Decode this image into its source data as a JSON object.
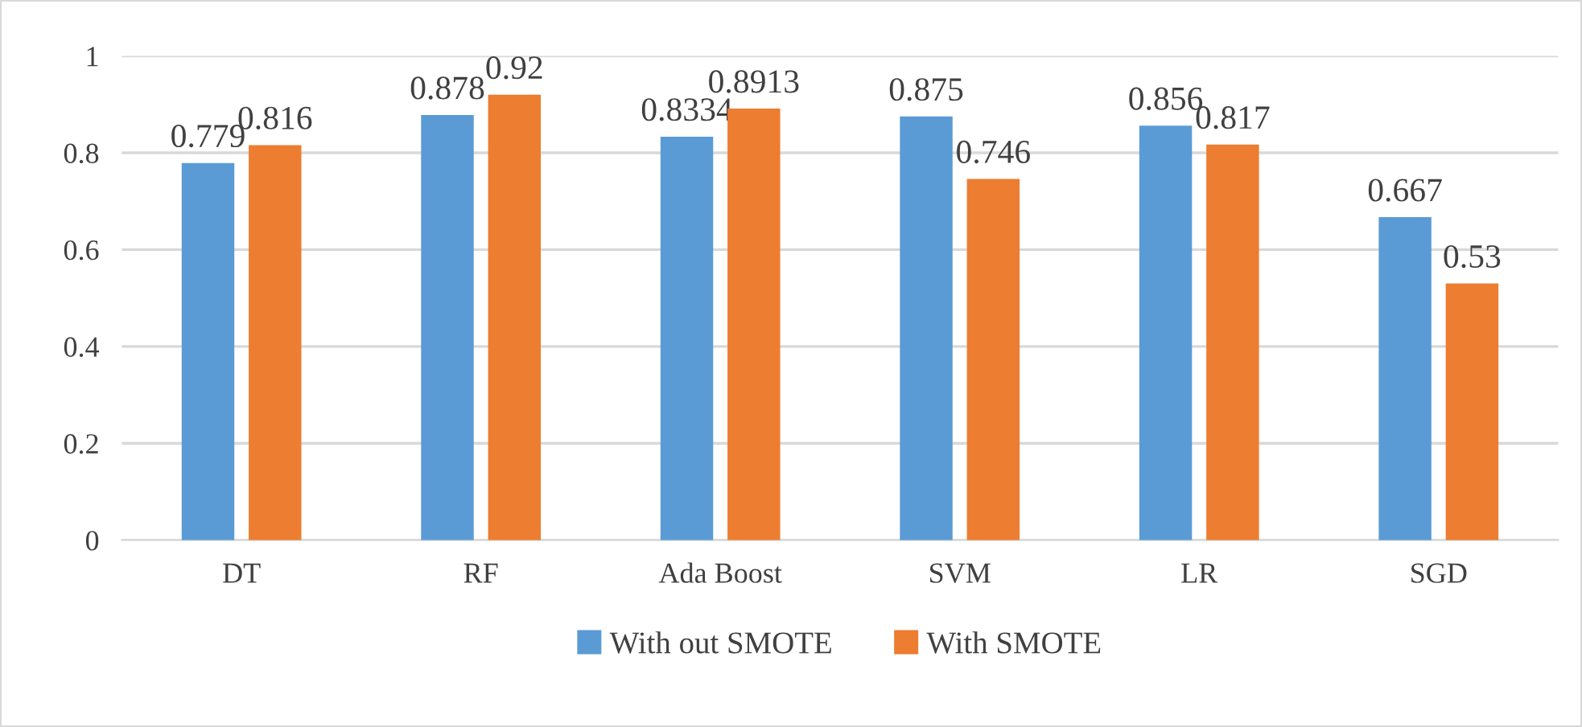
{
  "chart_data": {
    "type": "bar",
    "categories": [
      "DT",
      "RF",
      "Ada Boost",
      "SVM",
      "LR",
      "SGD"
    ],
    "series": [
      {
        "name": "With out SMOTE",
        "color": "#5b9bd5",
        "values": [
          0.779,
          0.878,
          0.8334,
          0.875,
          0.856,
          0.667
        ]
      },
      {
        "name": "With SMOTE",
        "color": "#ed7d31",
        "values": [
          0.816,
          0.92,
          0.8913,
          0.746,
          0.817,
          0.53
        ]
      }
    ],
    "ylim": [
      0,
      1
    ],
    "yticks": [
      0,
      0.2,
      0.4,
      0.6,
      0.8,
      1
    ],
    "grid": "y",
    "legend": "bottom",
    "data_labels": true
  }
}
